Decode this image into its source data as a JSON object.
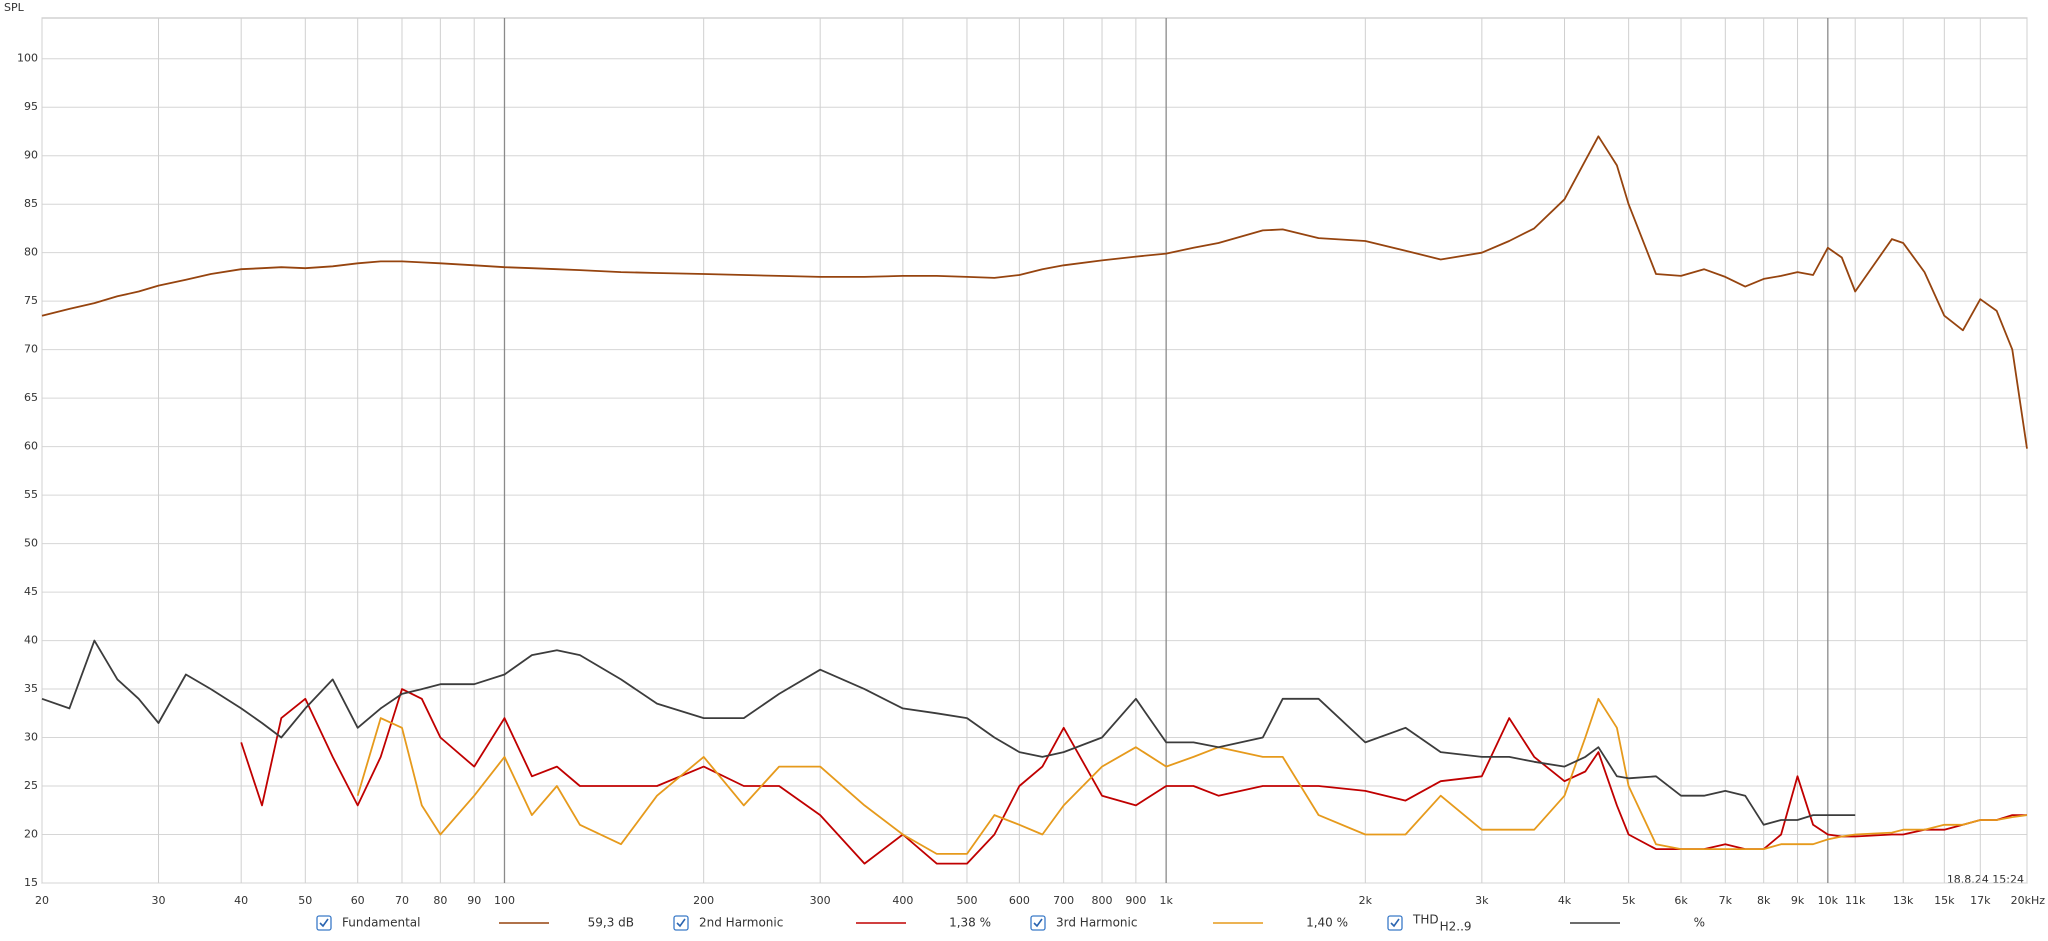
{
  "chart_data": {
    "type": "line",
    "y_label": "SPL",
    "timestamp": "18.8.24 15:24",
    "log_x": true,
    "grid": true,
    "xlim": [
      20,
      20000
    ],
    "ylim": [
      15,
      104.2
    ],
    "yticks": [
      15,
      20,
      25,
      30,
      35,
      40,
      45,
      50,
      55,
      60,
      65,
      70,
      75,
      80,
      85,
      90,
      95,
      100
    ],
    "xticks": [
      20,
      30,
      40,
      50,
      60,
      70,
      80,
      90,
      100,
      200,
      300,
      400,
      500,
      600,
      700,
      800,
      900,
      {
        "value": 1000,
        "label": "1k"
      },
      {
        "value": 2000,
        "label": "2k"
      },
      {
        "value": 3000,
        "label": "3k"
      },
      {
        "value": 4000,
        "label": "4k"
      },
      {
        "value": 5000,
        "label": "5k"
      },
      {
        "value": 6000,
        "label": "6k"
      },
      {
        "value": 7000,
        "label": "7k"
      },
      {
        "value": 8000,
        "label": "8k"
      },
      {
        "value": 9000,
        "label": "9k"
      },
      {
        "value": 10000,
        "label": "10k"
      },
      {
        "value": 11000,
        "label": "11k"
      },
      {
        "value": 13000,
        "label": "13k"
      },
      {
        "value": 15000,
        "label": "15k"
      },
      {
        "value": 17000,
        "label": "17k"
      },
      {
        "value": 20000,
        "label": "20kHz"
      }
    ],
    "x": [
      20,
      22,
      24,
      26,
      28,
      30,
      33,
      36,
      40,
      43,
      46,
      50,
      55,
      60,
      65,
      70,
      75,
      80,
      90,
      100,
      110,
      120,
      130,
      150,
      170,
      200,
      230,
      260,
      300,
      350,
      400,
      450,
      500,
      550,
      600,
      650,
      700,
      800,
      900,
      1000,
      1100,
      1200,
      1400,
      1500,
      1700,
      2000,
      2300,
      2600,
      3000,
      3300,
      3600,
      4000,
      4300,
      4500,
      4800,
      5000,
      5500,
      6000,
      6500,
      7000,
      7500,
      8000,
      8500,
      9000,
      9500,
      10000,
      10500,
      11000,
      12500,
      13000,
      14000,
      15000,
      16000,
      17000,
      18000,
      19000,
      20000
    ],
    "series": [
      {
        "name": "Fundamental",
        "readout": "59,3 dB",
        "color": "#96440f",
        "values": [
          73.5,
          74.2,
          74.8,
          75.5,
          76,
          76.6,
          77.2,
          77.8,
          78.3,
          78.4,
          78.5,
          78.4,
          78.6,
          78.9,
          79.1,
          79.1,
          79,
          78.9,
          78.7,
          78.5,
          78.4,
          78.3,
          78.2,
          78,
          77.9,
          77.8,
          77.7,
          77.6,
          77.5,
          77.5,
          77.6,
          77.6,
          77.5,
          77.4,
          77.7,
          78.3,
          78.7,
          79.2,
          79.6,
          79.9,
          80.5,
          81,
          82.3,
          82.4,
          81.5,
          81.2,
          80.2,
          79.3,
          80,
          81.2,
          82.5,
          85.5,
          89.5,
          92,
          89,
          85,
          77.8,
          77.6,
          78.3,
          77.5,
          76.5,
          77.3,
          77.6,
          78,
          77.7,
          80.5,
          79.5,
          76,
          81.4,
          81,
          78,
          73.5,
          72,
          75.2,
          74,
          70,
          59.8
        ]
      },
      {
        "name": "2nd Harmonic",
        "readout": "1,38 %",
        "color": "#c00000",
        "values": [
          null,
          null,
          null,
          null,
          null,
          null,
          null,
          null,
          29.5,
          23,
          32,
          34,
          28,
          23,
          28,
          35,
          34,
          30,
          27,
          32,
          26,
          27,
          25,
          25,
          25,
          27,
          25,
          25,
          22,
          17,
          20,
          17,
          17,
          20,
          25,
          27,
          31,
          24,
          23,
          25,
          25,
          24,
          25,
          25,
          25,
          24.5,
          23.5,
          25.5,
          26,
          32,
          28,
          25.5,
          26.5,
          28.5,
          23,
          20,
          18.5,
          18.5,
          18.5,
          19,
          18.5,
          18.5,
          20,
          26,
          21,
          20,
          19.8,
          19.8,
          20,
          20,
          20.5,
          20.5,
          21,
          21.5,
          21.5,
          22,
          22
        ]
      },
      {
        "name": "3rd Harmonic",
        "readout": "1,40 %",
        "color": "#e69a1c",
        "values": [
          null,
          null,
          null,
          null,
          null,
          null,
          null,
          null,
          null,
          null,
          null,
          null,
          null,
          24,
          32,
          31,
          23,
          20,
          24,
          28,
          22,
          25,
          21,
          19,
          24,
          28,
          23,
          27,
          27,
          23,
          20,
          18,
          18,
          22,
          21,
          20,
          23,
          27,
          29,
          27,
          28,
          29,
          28,
          28,
          22,
          20,
          20,
          24,
          20.5,
          20.5,
          20.5,
          24,
          30,
          34,
          31,
          25,
          19,
          18.5,
          18.5,
          18.5,
          18.5,
          18.5,
          19,
          19,
          19,
          19.5,
          19.8,
          20,
          20.2,
          20.5,
          20.5,
          21,
          21,
          21.5,
          21.5,
          21.8,
          22
        ]
      },
      {
        "name": "THD",
        "name_subscript": "H2..9",
        "readout": "%",
        "color": "#3c3c3c",
        "values": [
          34,
          33,
          40,
          36,
          34,
          31.5,
          36.5,
          35,
          33,
          31.5,
          30,
          33,
          36,
          31,
          33,
          34.5,
          35,
          35.5,
          35.5,
          36.5,
          38.5,
          39,
          38.5,
          36,
          33.5,
          32,
          32,
          34.5,
          37,
          35,
          33,
          32.5,
          32,
          30,
          28.5,
          28,
          28.5,
          30,
          34,
          29.5,
          29.5,
          29,
          30,
          34,
          34,
          29.5,
          31,
          28.5,
          28,
          28,
          27.5,
          27,
          28,
          29,
          26,
          25.8,
          26,
          24,
          24,
          24.5,
          24,
          21,
          21.5,
          21.5,
          22,
          22,
          22,
          22,
          null,
          null,
          null,
          null,
          null,
          null,
          null,
          null,
          null
        ]
      }
    ]
  }
}
